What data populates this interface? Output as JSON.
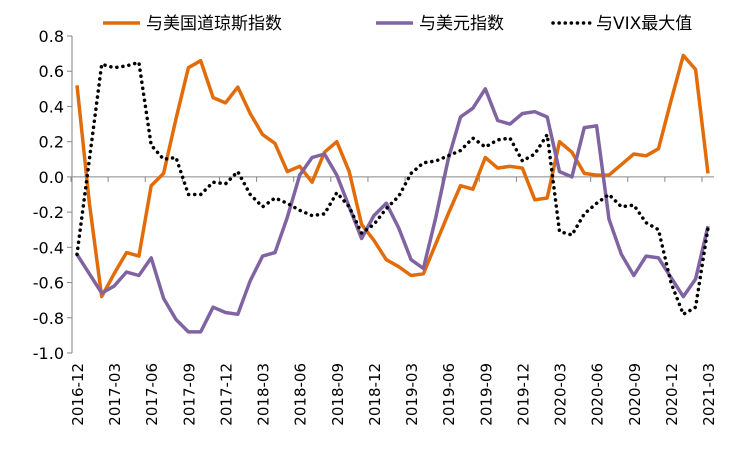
{
  "chart_data": {
    "type": "line",
    "title": "",
    "xlabel": "",
    "ylabel": "",
    "ylim": [
      -1.0,
      0.8
    ],
    "yticks": [
      "0.8",
      "0.6",
      "0.4",
      "0.2",
      "0.0",
      "-0.2",
      "-0.4",
      "-0.6",
      "-0.8",
      "-1.0"
    ],
    "grid": false,
    "legend_position": "top",
    "x": [
      "2016-12",
      "2017-01",
      "2017-02",
      "2017-03",
      "2017-04",
      "2017-05",
      "2017-06",
      "2017-07",
      "2017-08",
      "2017-09",
      "2017-10",
      "2017-11",
      "2017-12",
      "2018-01",
      "2018-02",
      "2018-03",
      "2018-04",
      "2018-05",
      "2018-06",
      "2018-07",
      "2018-08",
      "2018-09",
      "2018-10",
      "2018-11",
      "2018-12",
      "2019-01",
      "2019-02",
      "2019-03",
      "2019-04",
      "2019-05",
      "2019-06",
      "2019-07",
      "2019-08",
      "2019-09",
      "2019-10",
      "2019-11",
      "2019-12",
      "2020-01",
      "2020-02",
      "2020-03",
      "2020-04",
      "2020-05",
      "2020-06",
      "2020-07",
      "2020-08",
      "2020-09",
      "2020-10",
      "2020-11",
      "2020-12",
      "2021-01",
      "2021-02",
      "2021-03"
    ],
    "xtick_labels": [
      "2016-12",
      "2017-03",
      "2017-06",
      "2017-09",
      "2017-12",
      "2018-03",
      "2018-06",
      "2018-09",
      "2018-12",
      "2019-03",
      "2019-06",
      "2019-09",
      "2019-12",
      "2020-03",
      "2020-06",
      "2020-09",
      "2020-12",
      "2021-03"
    ],
    "series": [
      {
        "name": "与美国道琼斯指数",
        "color": "#E36C0A",
        "style": "solid",
        "values": [
          0.52,
          -0.15,
          -0.68,
          -0.55,
          -0.43,
          -0.45,
          -0.05,
          0.02,
          0.33,
          0.62,
          0.66,
          0.45,
          0.42,
          0.51,
          0.36,
          0.24,
          0.19,
          0.03,
          0.06,
          -0.03,
          0.14,
          0.2,
          0.03,
          -0.27,
          -0.36,
          -0.47,
          -0.51,
          -0.56,
          -0.55,
          -0.38,
          -0.21,
          -0.05,
          -0.07,
          0.11,
          0.05,
          0.06,
          0.05,
          -0.13,
          -0.12,
          0.2,
          0.14,
          0.02,
          0.01,
          0.01,
          0.07,
          0.13,
          0.12,
          0.16,
          0.43,
          0.69,
          0.61,
          0.02
        ]
      },
      {
        "name": "与美元指数",
        "color": "#8064A2",
        "style": "solid",
        "values": [
          -0.44,
          -0.55,
          -0.66,
          -0.62,
          -0.54,
          -0.56,
          -0.46,
          -0.69,
          -0.81,
          -0.88,
          -0.88,
          -0.74,
          -0.77,
          -0.78,
          -0.59,
          -0.45,
          -0.43,
          -0.23,
          0.01,
          0.11,
          0.13,
          0.01,
          -0.17,
          -0.35,
          -0.22,
          -0.15,
          -0.29,
          -0.47,
          -0.52,
          -0.23,
          0.1,
          0.34,
          0.39,
          0.5,
          0.32,
          0.3,
          0.36,
          0.37,
          0.34,
          0.03,
          0.0,
          0.28,
          0.29,
          -0.24,
          -0.44,
          -0.56,
          -0.45,
          -0.46,
          -0.57,
          -0.68,
          -0.58,
          -0.28
        ]
      },
      {
        "name": "与VIX最大值",
        "color": "#000000",
        "style": "dotted",
        "values": [
          -0.44,
          0.1,
          0.64,
          0.62,
          0.63,
          0.65,
          0.18,
          0.1,
          0.11,
          -0.1,
          -0.1,
          -0.03,
          -0.04,
          0.03,
          -0.1,
          -0.17,
          -0.12,
          -0.15,
          -0.19,
          -0.22,
          -0.21,
          -0.09,
          -0.17,
          -0.32,
          -0.27,
          -0.18,
          -0.11,
          0.02,
          0.08,
          0.09,
          0.12,
          0.15,
          0.22,
          0.17,
          0.21,
          0.22,
          0.09,
          0.13,
          0.24,
          -0.31,
          -0.33,
          -0.21,
          -0.15,
          -0.1,
          -0.17,
          -0.16,
          -0.26,
          -0.3,
          -0.6,
          -0.78,
          -0.74,
          -0.29
        ]
      }
    ]
  }
}
